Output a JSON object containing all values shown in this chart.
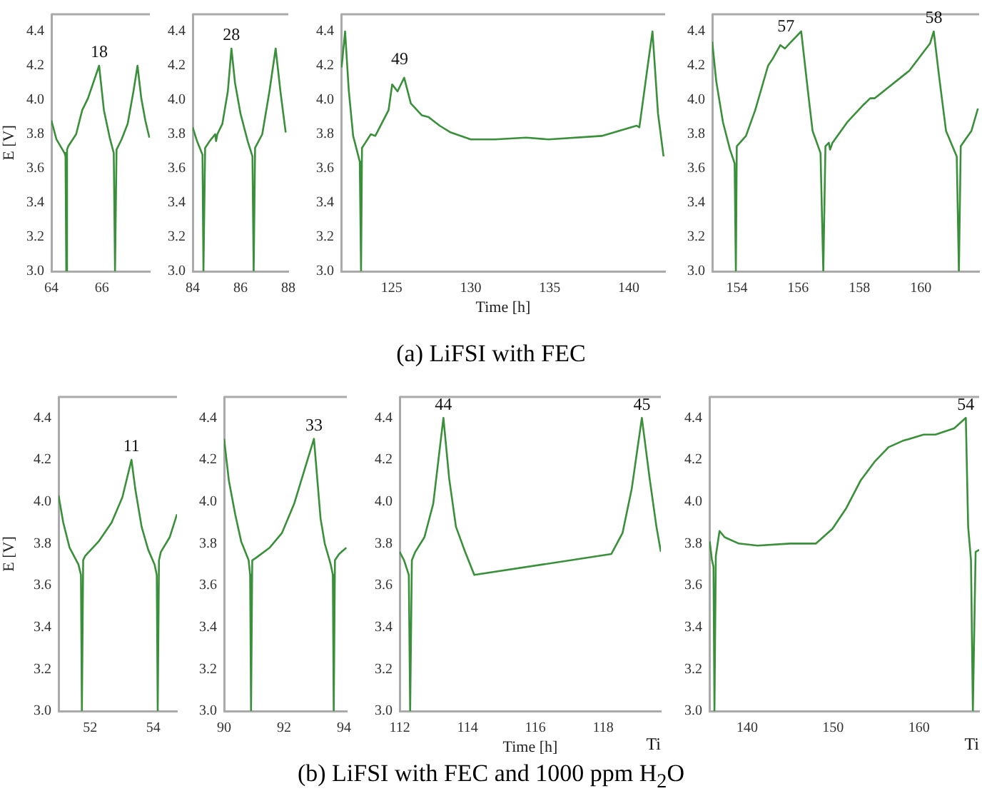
{
  "chart_data": [
    {
      "type": "line",
      "ylabel": "E [V]",
      "color": "#3a8f3a",
      "marker": "none",
      "xlim": [
        64,
        67.9
      ],
      "xticks": [
        64,
        66
      ],
      "ylim": [
        3,
        4.5
      ],
      "yticks": [
        {
          "value": 3,
          "label": "3.0"
        },
        {
          "value": 3.2,
          "label": "3.2"
        },
        {
          "value": 3.4,
          "label": "3.4"
        },
        {
          "value": 3.6,
          "label": "3.6"
        },
        {
          "value": 3.8,
          "label": "3.8"
        },
        {
          "value": 4,
          "label": "4.0"
        },
        {
          "value": 4.2,
          "label": "4.2"
        },
        {
          "value": 4.4,
          "label": "4.4"
        }
      ],
      "x": [
        64,
        64.2,
        64.52,
        64.56,
        64.59,
        64.62,
        64.67,
        64.98,
        65.22,
        65.45,
        65.89,
        66.08,
        66.31,
        66.47,
        66.52,
        66.58,
        66.78,
        67.02,
        67.25,
        67.41,
        67.56,
        67.72,
        67.88
      ],
      "values": [
        3.88,
        3.77,
        3.69,
        3.67,
        3.0,
        3.71,
        3.73,
        3.8,
        3.94,
        4.01,
        4.2,
        3.94,
        3.78,
        3.69,
        3.0,
        3.71,
        3.77,
        3.86,
        4.05,
        4.2,
        4.01,
        3.88,
        3.78
      ],
      "annotations": [
        {
          "text": "18",
          "x": 65.89,
          "y": 4.2
        },
        "(a) LiFSI with FEC"
      ]
    },
    {
      "type": "line",
      "color": "#3a8f3a",
      "marker": "none",
      "xlim": [
        84,
        88
      ],
      "xticks": [
        84,
        86,
        88
      ],
      "ylim": [
        3,
        4.5
      ],
      "yticks": [
        {
          "value": 3,
          "label": "3.0"
        },
        {
          "value": 3.2,
          "label": "3.2"
        },
        {
          "value": 3.4,
          "label": "3.4"
        },
        {
          "value": 3.6,
          "label": "3.6"
        },
        {
          "value": 3.8,
          "label": "3.8"
        },
        {
          "value": 4,
          "label": "4.0"
        },
        {
          "value": 4.2,
          "label": "4.2"
        },
        {
          "value": 4.4,
          "label": "4.4"
        }
      ],
      "x": [
        84,
        84.18,
        84.41,
        84.45,
        84.52,
        84.71,
        84.94,
        84.98,
        85.03,
        85.24,
        85.47,
        85.62,
        85.77,
        86,
        86.3,
        86.5,
        86.55,
        86.61,
        86.91,
        87.21,
        87.47,
        87.67,
        87.89
      ],
      "values": [
        3.84,
        3.76,
        3.68,
        3.0,
        3.72,
        3.76,
        3.8,
        3.76,
        3.8,
        3.86,
        4.05,
        4.3,
        4.1,
        3.92,
        3.76,
        3.67,
        3.0,
        3.72,
        3.8,
        4.05,
        4.3,
        4.05,
        3.81
      ],
      "annotations": [
        {
          "text": "28",
          "x": 85.62,
          "y": 4.3
        }
      ]
    },
    {
      "type": "line",
      "xlabel": "Time [h]",
      "color": "#3a8f3a",
      "marker": "none",
      "xlim": [
        121.8,
        142.3
      ],
      "xticks": [
        125,
        130,
        135,
        140
      ],
      "ylim": [
        3,
        4.5
      ],
      "yticks": [
        {
          "value": 3,
          "label": "3.0"
        },
        {
          "value": 3.2,
          "label": "3.2"
        },
        {
          "value": 3.4,
          "label": "3.4"
        },
        {
          "value": 3.6,
          "label": "3.6"
        },
        {
          "value": 3.8,
          "label": "3.8"
        },
        {
          "value": 4,
          "label": "4.0"
        },
        {
          "value": 4.2,
          "label": "4.2"
        },
        {
          "value": 4.4,
          "label": "4.4"
        }
      ],
      "x": [
        121.83,
        122.05,
        122.28,
        122.56,
        122.84,
        122.98,
        123.06,
        123.12,
        123.26,
        123.4,
        123.68,
        123.96,
        124.8,
        125.03,
        125.37,
        125.79,
        126.21,
        126.91,
        127.33,
        128.03,
        128.74,
        130,
        131.54,
        133.51,
        134.92,
        138.29,
        140.5,
        140.67,
        141.2,
        141.5,
        141.85,
        142.2
      ],
      "values": [
        4.19,
        4.4,
        4.06,
        3.79,
        3.69,
        3.64,
        3.0,
        3.72,
        3.74,
        3.76,
        3.8,
        3.79,
        3.94,
        4.09,
        4.05,
        4.13,
        3.98,
        3.91,
        3.9,
        3.85,
        3.81,
        3.77,
        3.77,
        3.78,
        3.77,
        3.79,
        3.85,
        3.84,
        4.2,
        4.4,
        3.92,
        3.67
      ],
      "annotations": [
        {
          "text": "49",
          "x": 125.5,
          "y": 4.16
        }
      ]
    },
    {
      "type": "line",
      "color": "#3a8f3a",
      "marker": "none",
      "xlim": [
        153.2,
        161.9
      ],
      "xticks": [
        154,
        156,
        158,
        160
      ],
      "ylim": [
        3,
        4.5
      ],
      "yticks": [
        {
          "value": 3,
          "label": "3.0"
        },
        {
          "value": 3.2,
          "label": "3.2"
        },
        {
          "value": 3.4,
          "label": "3.4"
        },
        {
          "value": 3.6,
          "label": "3.6"
        },
        {
          "value": 3.8,
          "label": "3.8"
        },
        {
          "value": 4,
          "label": "4.0"
        },
        {
          "value": 4.2,
          "label": "4.2"
        },
        {
          "value": 4.4,
          "label": "4.4"
        }
      ],
      "x": [
        153.2,
        153.33,
        153.55,
        153.78,
        153.93,
        153.97,
        154,
        154.3,
        154.6,
        155.02,
        155.17,
        155.42,
        155.57,
        155.72,
        156.1,
        156.32,
        156.47,
        156.73,
        156.82,
        156.89,
        157,
        157.04,
        157.12,
        157.6,
        158.12,
        158.35,
        158.5,
        159.62,
        160.3,
        160.42,
        160.6,
        160.82,
        161.17,
        161.24,
        161.3,
        161.65,
        161.86
      ],
      "values": [
        4.34,
        4.11,
        3.87,
        3.71,
        3.63,
        3.0,
        3.73,
        3.79,
        3.94,
        4.2,
        4.24,
        4.32,
        4.3,
        4.33,
        4.4,
        4.05,
        3.82,
        3.69,
        3.0,
        3.73,
        3.75,
        3.71,
        3.75,
        3.87,
        3.97,
        4.01,
        4.01,
        4.17,
        4.33,
        4.4,
        4.13,
        3.82,
        3.67,
        3.0,
        3.73,
        3.82,
        3.95
      ],
      "annotations": [
        {
          "text": "57",
          "x": 155.6,
          "y": 4.35
        },
        {
          "text": "58",
          "x": 160.42,
          "y": 4.4
        }
      ]
    },
    {
      "type": "line",
      "ylabel": "E [V]",
      "color": "#3a8f3a",
      "marker": "none",
      "xlim": [
        51,
        54.75
      ],
      "xticks": [
        52,
        54
      ],
      "ylim": [
        3,
        4.5
      ],
      "yticks": [
        {
          "value": 3,
          "label": "3.0"
        },
        {
          "value": 3.2,
          "label": "3.2"
        },
        {
          "value": 3.4,
          "label": "3.4"
        },
        {
          "value": 3.6,
          "label": "3.6"
        },
        {
          "value": 3.8,
          "label": "3.8"
        },
        {
          "value": 4,
          "label": "4.0"
        },
        {
          "value": 4.2,
          "label": "4.2"
        },
        {
          "value": 4.4,
          "label": "4.4"
        }
      ],
      "x": [
        51,
        51.15,
        51.35,
        51.63,
        51.71,
        51.74,
        51.78,
        51.84,
        52.27,
        52.68,
        53.02,
        53.31,
        53.43,
        53.63,
        53.84,
        54.04,
        54.11,
        54.14,
        54.18,
        54.24,
        54.52,
        54.75
      ],
      "values": [
        4.03,
        3.9,
        3.78,
        3.7,
        3.65,
        3.0,
        3.72,
        3.74,
        3.81,
        3.9,
        4.02,
        4.2,
        4.06,
        3.88,
        3.77,
        3.7,
        3.65,
        3.0,
        3.72,
        3.76,
        3.83,
        3.94
      ],
      "annotations": [
        {
          "text": "11",
          "x": 53.31,
          "y": 4.2
        },
        "(b) LiFSI with FEC and 1000 ppm H$_{2}$O"
      ]
    },
    {
      "type": "line",
      "color": "#3a8f3a",
      "marker": "none",
      "xlim": [
        90,
        94.1
      ],
      "xticks": [
        90,
        92,
        94
      ],
      "ylim": [
        3,
        4.5
      ],
      "yticks": [
        {
          "value": 3,
          "label": "3.0"
        },
        {
          "value": 3.2,
          "label": "3.2"
        },
        {
          "value": 3.4,
          "label": "3.4"
        },
        {
          "value": 3.6,
          "label": "3.6"
        },
        {
          "value": 3.8,
          "label": "3.8"
        },
        {
          "value": 4,
          "label": "4.0"
        },
        {
          "value": 4.2,
          "label": "4.2"
        },
        {
          "value": 4.4,
          "label": "4.4"
        }
      ],
      "x": [
        90,
        90.16,
        90.37,
        90.57,
        90.82,
        90.87,
        90.9,
        90.94,
        91.05,
        91.52,
        91.93,
        92.34,
        92.68,
        93,
        93.22,
        93.36,
        93.56,
        93.63,
        93.66,
        93.7,
        93.84,
        94.08
      ],
      "values": [
        4.3,
        4.1,
        3.94,
        3.81,
        3.72,
        3.65,
        3.0,
        3.72,
        3.73,
        3.78,
        3.85,
        3.99,
        4.15,
        4.3,
        3.92,
        3.8,
        3.7,
        3.65,
        3.0,
        3.72,
        3.75,
        3.78
      ],
      "annotations": [
        {
          "text": "33",
          "x": 93,
          "y": 4.3
        }
      ]
    },
    {
      "type": "line",
      "xlabel": "Time [h]",
      "color": "#3a8f3a",
      "marker": "none",
      "xlim": [
        112,
        119.7
      ],
      "xticks": [
        112,
        114,
        116,
        118
      ],
      "ylim": [
        3,
        4.5
      ],
      "yticks": [
        {
          "value": 3,
          "label": "3.0"
        },
        {
          "value": 3.2,
          "label": "3.2"
        },
        {
          "value": 3.4,
          "label": "3.4"
        },
        {
          "value": 3.6,
          "label": "3.6"
        },
        {
          "value": 3.8,
          "label": "3.8"
        },
        {
          "value": 4,
          "label": "4.0"
        },
        {
          "value": 4.2,
          "label": "4.2"
        },
        {
          "value": 4.4,
          "label": "4.4"
        }
      ],
      "x": [
        112,
        112.13,
        112.27,
        112.31,
        112.36,
        112.46,
        112.73,
        112.99,
        113.29,
        113.46,
        113.66,
        113.93,
        114.2,
        118.24,
        118.57,
        118.84,
        119.14,
        119.37,
        119.57,
        119.7
      ],
      "values": [
        3.76,
        3.72,
        3.65,
        3.0,
        3.72,
        3.76,
        3.83,
        3.99,
        4.4,
        4.11,
        3.88,
        3.76,
        3.65,
        3.75,
        3.85,
        4.06,
        4.4,
        4.11,
        3.88,
        3.76
      ],
      "annotations": [
        {
          "text": "44",
          "x": 113.29,
          "y": 4.4
        },
        {
          "text": "45",
          "x": 119.14,
          "y": 4.4
        },
        "Ti"
      ]
    },
    {
      "type": "line",
      "color": "#3a8f3a",
      "marker": "none",
      "xlim": [
        135.6,
        167
      ],
      "xticks": [
        140,
        150,
        160
      ],
      "ylim": [
        3,
        4.5
      ],
      "yticks": [
        {
          "value": 3,
          "label": "3.0"
        },
        {
          "value": 3.2,
          "label": "3.2"
        },
        {
          "value": 3.4,
          "label": "3.4"
        },
        {
          "value": 3.6,
          "label": "3.6"
        },
        {
          "value": 3.8,
          "label": "3.8"
        },
        {
          "value": 4,
          "label": "4.0"
        },
        {
          "value": 4.2,
          "label": "4.2"
        },
        {
          "value": 4.4,
          "label": "4.4"
        }
      ],
      "x": [
        135.64,
        135.9,
        136.08,
        136.19,
        136.35,
        136.78,
        137.38,
        139.02,
        141.2,
        145.01,
        148.01,
        149.92,
        151.55,
        153.19,
        154.82,
        156.46,
        158.09,
        160.54,
        161.91,
        164.09,
        165.45,
        165.72,
        166.05,
        166.27,
        166.59,
        167
      ],
      "values": [
        3.81,
        3.72,
        3.69,
        3.0,
        3.74,
        3.86,
        3.83,
        3.8,
        3.79,
        3.8,
        3.8,
        3.87,
        3.97,
        4.1,
        4.19,
        4.26,
        4.29,
        4.32,
        4.32,
        4.35,
        4.4,
        3.88,
        3.72,
        3.0,
        3.76,
        3.77
      ],
      "annotations": [
        {
          "text": "54",
          "x": 165.45,
          "y": 4.4
        },
        "Ti"
      ]
    }
  ]
}
